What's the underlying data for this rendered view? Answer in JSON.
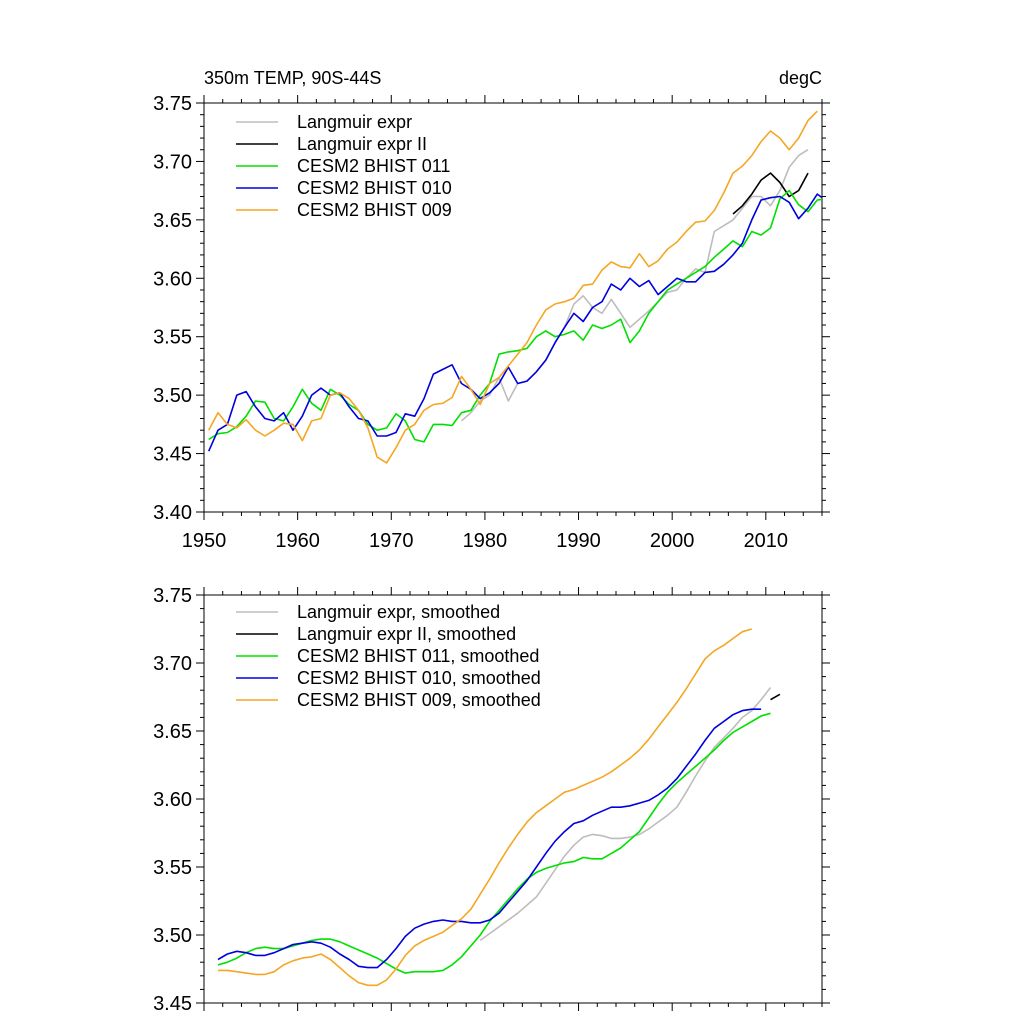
{
  "chart_data": [
    {
      "type": "line",
      "title_left": "350m TEMP, 90S-44S",
      "title_right": "degC",
      "xlim": [
        1950,
        2016
      ],
      "ylim": [
        3.4,
        3.75
      ],
      "yticks": [
        "3.40",
        "3.45",
        "3.50",
        "3.55",
        "3.60",
        "3.65",
        "3.70",
        "3.75"
      ],
      "xticks": [
        "1950",
        "1960",
        "1970",
        "1980",
        "1990",
        "2000",
        "2010"
      ],
      "legend_position": "top-left",
      "series": [
        {
          "name": "Langmuir expr",
          "color": "#bdbdbd",
          "x0": 1977,
          "values": [
            3.478,
            3.485,
            3.495,
            3.5,
            3.515,
            3.495,
            3.51,
            3.512,
            3.52,
            3.53,
            3.545,
            3.558,
            3.578,
            3.585,
            3.575,
            3.57,
            3.582,
            3.57,
            3.558,
            3.565,
            3.572,
            3.58,
            3.588,
            3.59,
            3.6,
            3.608,
            3.605,
            3.64,
            3.645,
            3.65,
            3.66,
            3.67,
            3.67,
            3.662,
            3.675,
            3.695,
            3.705,
            3.71
          ]
        },
        {
          "name": "Langmuir expr II",
          "color": "#000000",
          "x0": 2006,
          "values": [
            3.655,
            3.662,
            3.672,
            3.684,
            3.69,
            3.682,
            3.67,
            3.675,
            3.69
          ]
        },
        {
          "name": "CESM2 BHIST 011",
          "color": "#00e000",
          "x0": 1950,
          "values": [
            3.462,
            3.467,
            3.468,
            3.473,
            3.482,
            3.495,
            3.494,
            3.48,
            3.478,
            3.49,
            3.505,
            3.493,
            3.487,
            3.505,
            3.5,
            3.492,
            3.487,
            3.475,
            3.47,
            3.472,
            3.484,
            3.478,
            3.462,
            3.46,
            3.475,
            3.475,
            3.474,
            3.485,
            3.487,
            3.5,
            3.51,
            3.535,
            3.537,
            3.538,
            3.54,
            3.55,
            3.555,
            3.55,
            3.552,
            3.555,
            3.547,
            3.56,
            3.557,
            3.56,
            3.565,
            3.545,
            3.555,
            3.57,
            3.58,
            3.59,
            3.595,
            3.6,
            3.605,
            3.61,
            3.618,
            3.625,
            3.632,
            3.627,
            3.64,
            3.637,
            3.643,
            3.668,
            3.675,
            3.663,
            3.657,
            3.667,
            3.668
          ]
        },
        {
          "name": "CESM2 BHIST 010",
          "color": "#0000e0",
          "x0": 1950,
          "values": [
            3.452,
            3.47,
            3.475,
            3.5,
            3.503,
            3.49,
            3.48,
            3.478,
            3.485,
            3.47,
            3.482,
            3.5,
            3.506,
            3.5,
            3.502,
            3.49,
            3.48,
            3.478,
            3.465,
            3.465,
            3.468,
            3.484,
            3.482,
            3.497,
            3.518,
            3.522,
            3.526,
            3.51,
            3.505,
            3.497,
            3.502,
            3.51,
            3.524,
            3.51,
            3.512,
            3.52,
            3.53,
            3.545,
            3.558,
            3.57,
            3.563,
            3.575,
            3.58,
            3.595,
            3.59,
            3.6,
            3.593,
            3.598,
            3.586,
            3.593,
            3.6,
            3.597,
            3.597,
            3.605,
            3.606,
            3.612,
            3.62,
            3.63,
            3.65,
            3.667,
            3.669,
            3.67,
            3.665,
            3.651,
            3.66,
            3.672,
            3.666,
            3.672
          ]
        },
        {
          "name": "CESM2 BHIST 009",
          "color": "#f5a623",
          "x0": 1950,
          "values": [
            3.47,
            3.485,
            3.475,
            3.472,
            3.479,
            3.47,
            3.465,
            3.47,
            3.476,
            3.475,
            3.461,
            3.478,
            3.48,
            3.5,
            3.502,
            3.497,
            3.487,
            3.472,
            3.447,
            3.442,
            3.455,
            3.47,
            3.475,
            3.487,
            3.492,
            3.493,
            3.498,
            3.516,
            3.505,
            3.492,
            3.51,
            3.515,
            3.525,
            3.535,
            3.545,
            3.56,
            3.573,
            3.578,
            3.58,
            3.583,
            3.594,
            3.595,
            3.607,
            3.614,
            3.61,
            3.609,
            3.621,
            3.61,
            3.615,
            3.625,
            3.631,
            3.64,
            3.648,
            3.649,
            3.658,
            3.673,
            3.69,
            3.696,
            3.705,
            3.717,
            3.726,
            3.72,
            3.71,
            3.72,
            3.735,
            3.743
          ]
        }
      ]
    },
    {
      "type": "line",
      "xlim": [
        1950,
        2016
      ],
      "ylim": [
        3.45,
        3.75
      ],
      "yticks": [
        "3.45",
        "3.50",
        "3.55",
        "3.60",
        "3.65",
        "3.70",
        "3.75"
      ],
      "legend_position": "top-left",
      "series": [
        {
          "name": "Langmuir expr, smoothed",
          "color": "#bdbdbd",
          "x0": 1979,
          "values": [
            3.496,
            3.501,
            3.506,
            3.511,
            3.516,
            3.522,
            3.528,
            3.538,
            3.548,
            3.558,
            3.566,
            3.572,
            3.574,
            3.573,
            3.571,
            3.571,
            3.572,
            3.574,
            3.578,
            3.583,
            3.588,
            3.594,
            3.605,
            3.617,
            3.628,
            3.638,
            3.645,
            3.652,
            3.66,
            3.665,
            3.673,
            3.682
          ]
        },
        {
          "name": "Langmuir expr II, smoothed",
          "color": "#000000",
          "x0": 2010,
          "values": [
            3.673,
            3.677
          ]
        },
        {
          "name": "CESM2 BHIST 011, smoothed",
          "color": "#00e000",
          "x0": 1951,
          "values": [
            3.478,
            3.48,
            3.483,
            3.487,
            3.49,
            3.491,
            3.49,
            3.49,
            3.492,
            3.494,
            3.496,
            3.497,
            3.497,
            3.495,
            3.492,
            3.489,
            3.486,
            3.483,
            3.479,
            3.475,
            3.472,
            3.473,
            3.473,
            3.473,
            3.474,
            3.478,
            3.484,
            3.492,
            3.5,
            3.51,
            3.518,
            3.526,
            3.534,
            3.541,
            3.546,
            3.549,
            3.551,
            3.553,
            3.554,
            3.557,
            3.556,
            3.556,
            3.56,
            3.564,
            3.57,
            3.576,
            3.586,
            3.596,
            3.605,
            3.612,
            3.618,
            3.624,
            3.63,
            3.636,
            3.643,
            3.649,
            3.653,
            3.657,
            3.661,
            3.663
          ]
        },
        {
          "name": "CESM2 BHIST 010, smoothed",
          "color": "#0000e0",
          "x0": 1951,
          "values": [
            3.482,
            3.486,
            3.488,
            3.487,
            3.485,
            3.485,
            3.487,
            3.49,
            3.493,
            3.494,
            3.495,
            3.494,
            3.491,
            3.486,
            3.482,
            3.477,
            3.476,
            3.476,
            3.482,
            3.49,
            3.499,
            3.505,
            3.508,
            3.51,
            3.511,
            3.51,
            3.51,
            3.509,
            3.509,
            3.511,
            3.516,
            3.524,
            3.532,
            3.54,
            3.55,
            3.56,
            3.569,
            3.576,
            3.582,
            3.584,
            3.588,
            3.591,
            3.594,
            3.594,
            3.595,
            3.597,
            3.599,
            3.603,
            3.608,
            3.615,
            3.624,
            3.633,
            3.643,
            3.652,
            3.657,
            3.662,
            3.665,
            3.666,
            3.666
          ]
        },
        {
          "name": "CESM2 BHIST 009, smoothed",
          "color": "#f5a623",
          "x0": 1951,
          "values": [
            3.474,
            3.474,
            3.473,
            3.472,
            3.471,
            3.471,
            3.473,
            3.478,
            3.481,
            3.483,
            3.484,
            3.486,
            3.482,
            3.476,
            3.47,
            3.465,
            3.463,
            3.463,
            3.467,
            3.475,
            3.485,
            3.492,
            3.496,
            3.499,
            3.502,
            3.507,
            3.512,
            3.519,
            3.53,
            3.541,
            3.553,
            3.564,
            3.574,
            3.583,
            3.59,
            3.595,
            3.6,
            3.605,
            3.607,
            3.61,
            3.613,
            3.616,
            3.62,
            3.625,
            3.63,
            3.636,
            3.644,
            3.653,
            3.662,
            3.671,
            3.681,
            3.692,
            3.703,
            3.709,
            3.713,
            3.718,
            3.723,
            3.725
          ]
        }
      ]
    }
  ]
}
